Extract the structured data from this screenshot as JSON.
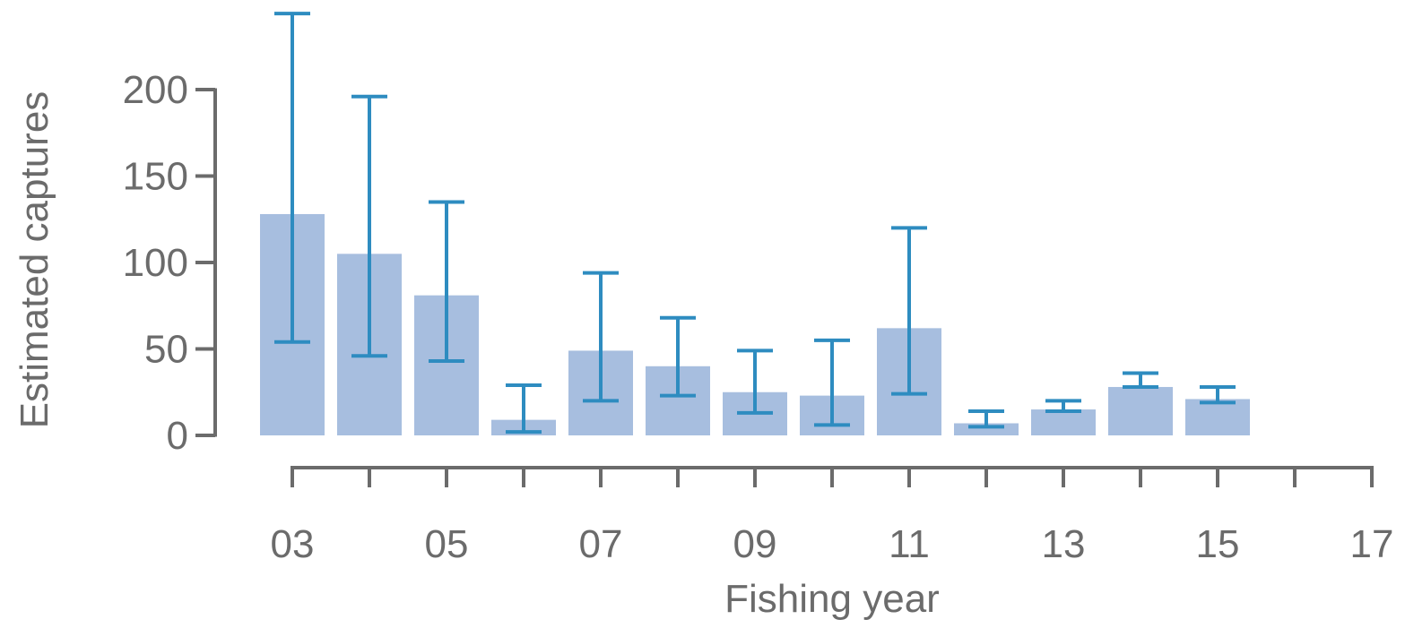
{
  "chart_data": {
    "type": "bar",
    "title": "",
    "xlabel": "Fishing year",
    "ylabel": "Estimated captures",
    "ylim": [
      0,
      200
    ],
    "yticks": [
      0,
      50,
      100,
      150,
      200
    ],
    "xlim": [
      2003,
      2017
    ],
    "xticks": [
      {
        "year": 2003,
        "label": "03"
      },
      {
        "year": 2004,
        "label": ""
      },
      {
        "year": 2005,
        "label": "05"
      },
      {
        "year": 2006,
        "label": ""
      },
      {
        "year": 2007,
        "label": "07"
      },
      {
        "year": 2008,
        "label": ""
      },
      {
        "year": 2009,
        "label": "09"
      },
      {
        "year": 2010,
        "label": ""
      },
      {
        "year": 2011,
        "label": "11"
      },
      {
        "year": 2012,
        "label": ""
      },
      {
        "year": 2013,
        "label": "13"
      },
      {
        "year": 2014,
        "label": ""
      },
      {
        "year": 2015,
        "label": "15"
      },
      {
        "year": 2016,
        "label": ""
      },
      {
        "year": 2017,
        "label": "17"
      }
    ],
    "grid": false,
    "legend": "none",
    "colors": {
      "bar": "#a7bedf",
      "errorbar": "#2e8cc0",
      "axis": "#6b6b6b"
    },
    "series": [
      {
        "x": [
          2003,
          2004,
          2005,
          2006,
          2007,
          2008,
          2009,
          2010,
          2011,
          2012,
          2013,
          2014,
          2015
        ],
        "values": [
          128,
          105,
          81,
          9,
          49,
          40,
          25,
          23,
          62,
          7,
          15,
          28,
          21
        ],
        "lower": [
          54,
          46,
          43,
          2,
          20,
          23,
          13,
          6,
          24,
          5,
          14,
          28,
          19
        ],
        "upper": [
          244,
          196,
          135,
          29,
          94,
          68,
          49,
          55,
          120,
          14,
          20,
          36,
          28
        ]
      }
    ]
  }
}
